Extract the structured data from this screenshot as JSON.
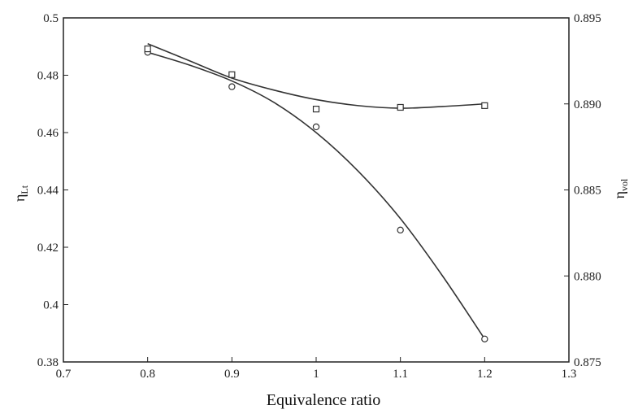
{
  "chart_data": {
    "type": "line",
    "xlabel": "Equivalence ratio",
    "ylabel_left": {
      "symbol": "η",
      "subscript": "Lt"
    },
    "ylabel_right": {
      "symbol": "η",
      "subscript": "vol"
    },
    "xlim": [
      0.7,
      1.3
    ],
    "ylim_left": [
      0.38,
      0.5
    ],
    "ylim_right": [
      0.875,
      0.895
    ],
    "x_ticks": [
      "0.7",
      "0.8",
      "0.9",
      "1",
      "1.1",
      "1.2",
      "1.3"
    ],
    "y_left_ticks": [
      "0.38",
      "0.4",
      "0.42",
      "0.44",
      "0.46",
      "0.48",
      "0.5"
    ],
    "y_right_ticks": [
      "0.875",
      "0.880",
      "0.885",
      "0.890",
      "0.895"
    ],
    "grid": false,
    "series": [
      {
        "axis": "left",
        "marker": "circle",
        "color": "#333333",
        "points": [
          [
            0.8,
            0.488
          ],
          [
            0.9,
            0.476
          ],
          [
            1.0,
            0.462
          ],
          [
            1.1,
            0.426
          ],
          [
            1.2,
            0.388
          ]
        ],
        "curve": [
          [
            0.8,
            0.488
          ],
          [
            0.85,
            0.4835
          ],
          [
            0.9,
            0.478
          ],
          [
            0.95,
            0.4705
          ],
          [
            1.0,
            0.46
          ],
          [
            1.05,
            0.4465
          ],
          [
            1.1,
            0.43
          ],
          [
            1.15,
            0.41
          ],
          [
            1.2,
            0.388
          ]
        ]
      },
      {
        "axis": "right",
        "marker": "square",
        "color": "#333333",
        "points": [
          [
            0.8,
            0.8932
          ],
          [
            0.9,
            0.8917
          ],
          [
            1.0,
            0.8897
          ],
          [
            1.1,
            0.8898
          ],
          [
            1.2,
            0.8899
          ]
        ],
        "curve": [
          [
            0.8,
            0.8935
          ],
          [
            0.85,
            0.8925
          ],
          [
            0.9,
            0.8915
          ],
          [
            0.95,
            0.8908
          ],
          [
            1.0,
            0.89025
          ],
          [
            1.05,
            0.8899
          ],
          [
            1.1,
            0.88975
          ],
          [
            1.15,
            0.88985
          ],
          [
            1.2,
            0.89
          ]
        ]
      }
    ]
  }
}
